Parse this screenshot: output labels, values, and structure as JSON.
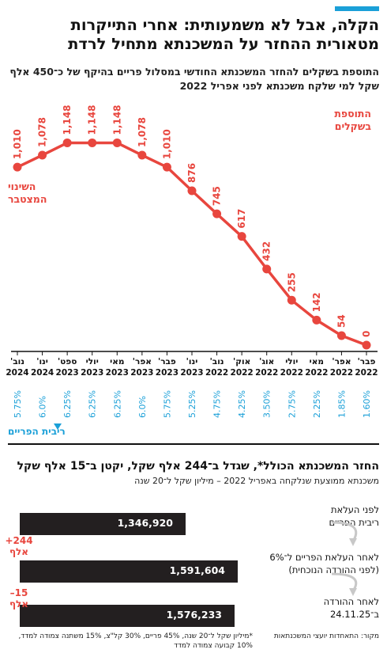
{
  "header": {
    "title": "הקלה, אבל לא משמעותית: אחרי התייקרות מטאורית ההחזר על המשכנתא מתחיל לרדת",
    "subtitle": "התוספת בשקלים להחזר המשכנתא החודשי במסלול פריים בהיקף של כ־450 אלף שקל למי שלקח משכנתא לפני אפריל 2022"
  },
  "colors": {
    "accent": "#1ba0d8",
    "line": "#e8463e",
    "bar": "#231f20",
    "rate": "#1ba0d8"
  },
  "chart_data": [
    {
      "type": "line",
      "title": "התוספת בשקלים להחזר המשכנתא החודשי במסלול פריים בהיקף של כ־450 אלף שקל למי שלקח משכנתא לפני אפריל 2022",
      "ylabel": "התוספת בשקלים",
      "right_label": "השינוי המצטבר",
      "rate_label": "ריבית הפריים",
      "categories": [
        {
          "month": "פבר'",
          "year": "2022"
        },
        {
          "month": "אפר'",
          "year": "2022"
        },
        {
          "month": "מאי",
          "year": "2022"
        },
        {
          "month": "יולי",
          "year": "2022"
        },
        {
          "month": "אוג'",
          "year": "2022"
        },
        {
          "month": "אוק'",
          "year": "2022"
        },
        {
          "month": "נוב'",
          "year": "2022"
        },
        {
          "month": "ינו'",
          "year": "2023"
        },
        {
          "month": "פבר'",
          "year": "2023"
        },
        {
          "month": "אפר'",
          "year": "2023"
        },
        {
          "month": "מאי",
          "year": "2023"
        },
        {
          "month": "יולי",
          "year": "2023"
        },
        {
          "month": "ספט'",
          "year": "2023"
        },
        {
          "month": "ינו'",
          "year": "2024"
        },
        {
          "month": "נוב'",
          "year": "2024"
        }
      ],
      "values": [
        0,
        54,
        142,
        255,
        432,
        617,
        745,
        876,
        1010,
        1078,
        1148,
        1148,
        1148,
        1078,
        1010
      ],
      "value_labels": [
        "0",
        "54",
        "142",
        "255",
        "432",
        "617",
        "745",
        "876",
        "1,010",
        "1,078",
        "1,148",
        "1,148",
        "1,148",
        "1,078",
        "1,010"
      ],
      "prime_rates": [
        "1.60%",
        "1.85%",
        "2.25%",
        "2.75%",
        "3.50%",
        "4.25%",
        "4.75%",
        "5.25%",
        "5.75%",
        "6.0%",
        "6.25%",
        "6.25%",
        "6.25%",
        "6.0%",
        "5.75%"
      ],
      "ylim": [
        0,
        1150
      ],
      "grid": false
    },
    {
      "type": "bar",
      "title": "החזר המשכנתא הכולל*, שגדל ב־244 אלף שקל, יקטן ב־15 אלף שקל",
      "subtitle": "משכנתא ממוצעת שנלקחה באפריל 2022 – מיליון שקל ל־20 שנה",
      "categories": [
        [
          "לפני העלאת",
          "ריבית הפריים"
        ],
        [
          "לאחר העלאת הפריים ל־6%",
          "(לפני ההורדה הנוכחית)"
        ],
        [
          "לאחר ההורדה",
          "ב־24.11.25"
        ]
      ],
      "values": [
        1346920,
        1591604,
        1576233
      ],
      "value_labels": [
        "1,346,920",
        "1,591,604",
        "1,576,233"
      ],
      "xlim": [
        0,
        1700000
      ],
      "annotations": [
        {
          "value": "+244",
          "unit": "אלף"
        },
        {
          "value": "–15",
          "unit": "אלף"
        }
      ]
    }
  ],
  "footer": {
    "source": "מקור: התאחדות יועצי המשכנתאות",
    "footnote": "*מיליון שקל ל־20 שנה, 45% פריים, 30% קל\"צ, 15% משתנה צמודה למדד, 10% קבועה צמודה למדד"
  }
}
